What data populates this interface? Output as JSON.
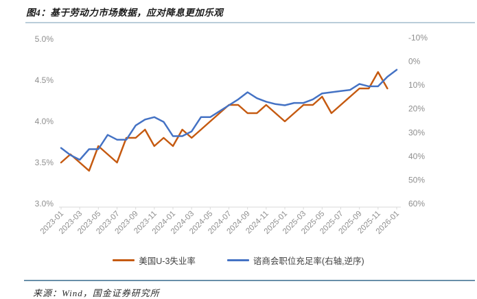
{
  "figure": {
    "title": "图4：基于劳动力市场数据，应对降息更加乐观",
    "source": "来源：Wind，国金证券研究所"
  },
  "chart_data": {
    "type": "line",
    "title": "基于劳动力市场数据，应对降息更加乐观",
    "x_months": [
      "2023-01",
      "2023-02",
      "2023-03",
      "2023-04",
      "2023-05",
      "2023-06",
      "2023-07",
      "2023-08",
      "2023-09",
      "2023-10",
      "2023-11",
      "2023-12",
      "2024-01",
      "2024-02",
      "2024-03",
      "2024-04",
      "2024-05",
      "2024-06",
      "2024-07",
      "2024-08",
      "2024-09",
      "2024-10",
      "2024-11",
      "2024-12",
      "2025-01",
      "2025-02",
      "2025-03",
      "2025-04",
      "2025-05",
      "2025-06",
      "2025-07",
      "2025-08",
      "2025-09",
      "2025-10",
      "2025-11",
      "2025-12",
      "2026-01"
    ],
    "x_axis_tick_labels": [
      "2023-01",
      "2023-03",
      "2023-05",
      "2023-07",
      "2023-09",
      "2023-11",
      "2024-01",
      "2024-03",
      "2024-05",
      "2024-07",
      "2024-09",
      "2024-11",
      "2025-01",
      "2025-03",
      "2025-05",
      "2025-07",
      "2025-09",
      "2025-11",
      "2026-01"
    ],
    "series": [
      {
        "name": "美国U-3失业率",
        "axis": "left",
        "color": "#C55A11",
        "values": [
          3.5,
          3.6,
          3.5,
          3.4,
          3.7,
          3.6,
          3.5,
          3.8,
          3.8,
          3.9,
          3.7,
          3.8,
          3.7,
          3.9,
          3.8,
          3.9,
          4.0,
          4.1,
          4.2,
          4.2,
          4.1,
          4.1,
          4.2,
          4.1,
          4.0,
          4.1,
          4.2,
          4.2,
          4.3,
          4.1,
          4.2,
          4.3,
          4.4,
          4.4,
          4.6,
          4.4
        ]
      },
      {
        "name": "谘商会职位充足率(右轴,逆序)",
        "axis": "right",
        "color": "#4472C4",
        "values": [
          36.5,
          39.5,
          41.5,
          37,
          37,
          31,
          33,
          33,
          27,
          24.5,
          23.5,
          25.5,
          31.5,
          31.5,
          29.5,
          23.5,
          23.5,
          21,
          18.5,
          16,
          13,
          15.5,
          17,
          18,
          18.5,
          17.5,
          17.5,
          16,
          13.5,
          13,
          12.5,
          12,
          9.5,
          10.5,
          10.5,
          6.5,
          3.5
        ]
      }
    ],
    "left_axis": {
      "tick_labels": [
        "5.0%",
        "4.5%",
        "4.0%",
        "3.5%",
        "3.0%"
      ],
      "tick_values": [
        5.0,
        4.5,
        4.0,
        3.5,
        3.0
      ],
      "min": 3.0,
      "max": 5.0
    },
    "right_axis": {
      "tick_labels": [
        "-10%",
        "0%",
        "10%",
        "20%",
        "30%",
        "40%",
        "50%",
        "60%"
      ],
      "tick_values": [
        -10,
        0,
        10,
        20,
        30,
        40,
        50,
        60
      ],
      "min": -10,
      "max": 60,
      "reversed": true
    },
    "grid": false,
    "legend_position": "bottom"
  }
}
